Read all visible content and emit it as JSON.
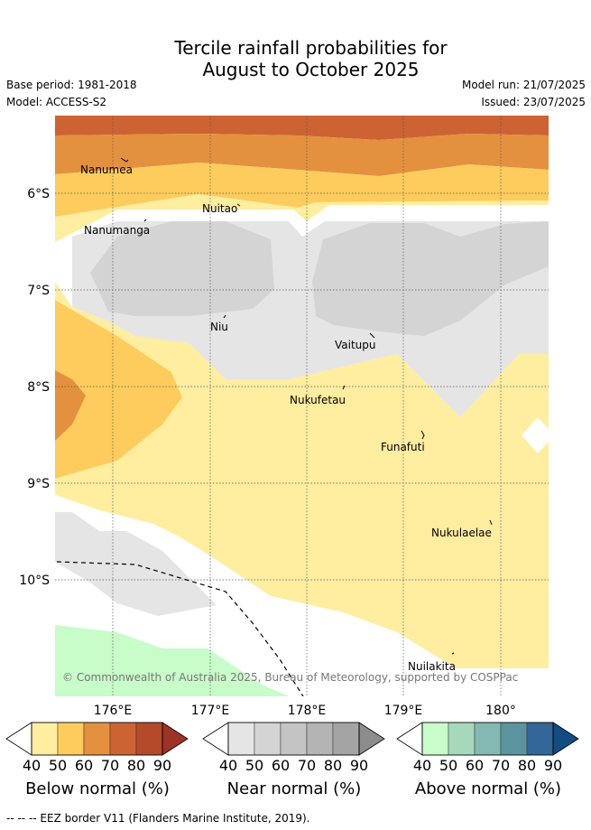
{
  "title_line1": "Tercile rainfall probabilities for",
  "title_line2": "August to October 2025",
  "base_period": "Base period: 1981-2018",
  "model": "Model: ACCESS-S2",
  "model_run": "Model run: 21/07/2025",
  "issued": "Issued: 23/07/2025",
  "lat_labels": [
    "6°S",
    "7°S",
    "8°S",
    "9°S",
    "10°S"
  ],
  "lon_labels": [
    "176°E",
    "177°E",
    "178°E",
    "179°E",
    "180°"
  ],
  "islands": {
    "nanumea": "Nanumea",
    "nuitao": "Nuitao",
    "nanumanga": "Nanumanga",
    "niu": "Niu",
    "vaitupu": "Vaitupu",
    "nukufetau": "Nukufetau",
    "funafuti": "Funafuti",
    "nukulaelae": "Nukulaelae",
    "nuilakita": "Nuilakita"
  },
  "copyright": "© Commonwealth of Australia 2025, Bureau of Meteorology, supported by COSPPac",
  "colorbars": {
    "below": {
      "label": "Below normal (%)",
      "ticks": [
        "40",
        "50",
        "60",
        "70",
        "80",
        "90"
      ],
      "colors": [
        "#ffeda0",
        "#fecc5c",
        "#e3913f",
        "#cd6332",
        "#b54a2a",
        "#9e3325"
      ]
    },
    "near": {
      "label": "Near normal (%)",
      "ticks": [
        "40",
        "50",
        "60",
        "70",
        "80",
        "90"
      ],
      "colors": [
        "#e5e5e5",
        "#d4d4d4",
        "#c4c4c4",
        "#b4b4b4",
        "#a4a4a4",
        "#8c8c8c"
      ]
    },
    "above": {
      "label": "Above normal (%)",
      "ticks": [
        "40",
        "50",
        "60",
        "70",
        "80",
        "90"
      ],
      "colors": [
        "#c8fcc8",
        "#a6d9bc",
        "#84b8b3",
        "#5b949f",
        "#336699",
        "#134c82"
      ]
    }
  },
  "footer": "--  --  -- EEZ border V11 (Flanders Marine Institute, 2019)."
}
